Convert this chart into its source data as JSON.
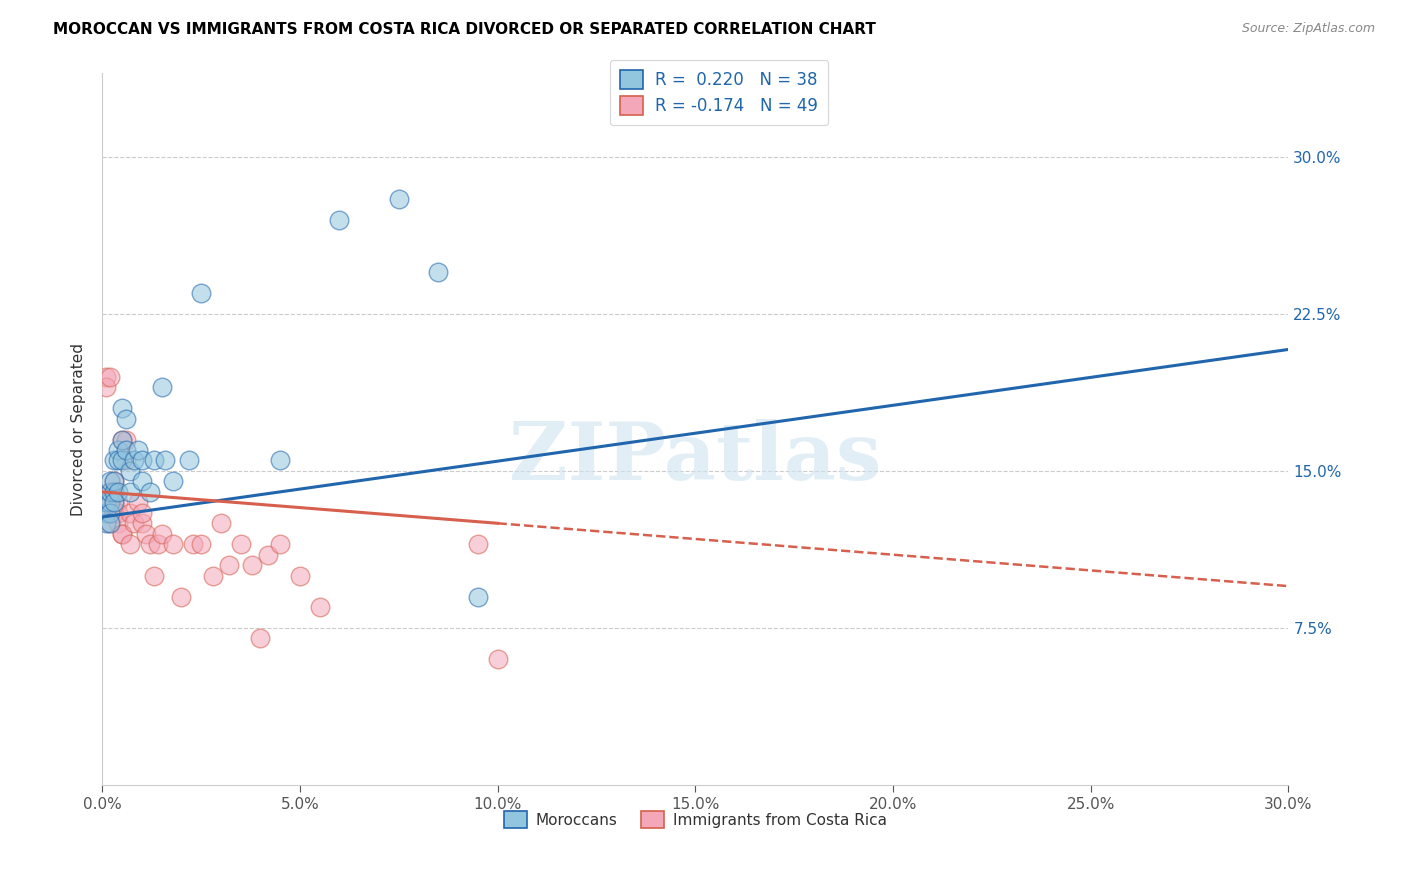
{
  "title": "MOROCCAN VS IMMIGRANTS FROM COSTA RICA DIVORCED OR SEPARATED CORRELATION CHART",
  "source": "Source: ZipAtlas.com",
  "ylabel": "Divorced or Separated",
  "yticks": [
    "7.5%",
    "15.0%",
    "22.5%",
    "30.0%"
  ],
  "ytick_vals": [
    0.075,
    0.15,
    0.225,
    0.3
  ],
  "xrange": [
    0.0,
    0.3
  ],
  "yrange": [
    0.0,
    0.34
  ],
  "blue_color": "#92c5de",
  "pink_color": "#f4a7b9",
  "blue_line_color": "#2166ac",
  "pink_line_color": "#d6604d",
  "watermark_text": "ZIPatlas",
  "blue_r": 0.22,
  "blue_n": 38,
  "pink_r": -0.174,
  "pink_n": 49,
  "moroccans_x": [
    0.001,
    0.001,
    0.001,
    0.002,
    0.002,
    0.002,
    0.002,
    0.002,
    0.003,
    0.003,
    0.003,
    0.003,
    0.004,
    0.004,
    0.004,
    0.005,
    0.005,
    0.005,
    0.006,
    0.006,
    0.007,
    0.007,
    0.008,
    0.009,
    0.01,
    0.01,
    0.012,
    0.013,
    0.015,
    0.016,
    0.018,
    0.022,
    0.025,
    0.045,
    0.06,
    0.075,
    0.085,
    0.095
  ],
  "moroccans_y": [
    0.13,
    0.125,
    0.135,
    0.135,
    0.13,
    0.14,
    0.145,
    0.125,
    0.14,
    0.135,
    0.155,
    0.145,
    0.16,
    0.155,
    0.14,
    0.18,
    0.155,
    0.165,
    0.16,
    0.175,
    0.15,
    0.14,
    0.155,
    0.16,
    0.145,
    0.155,
    0.14,
    0.155,
    0.19,
    0.155,
    0.145,
    0.155,
    0.235,
    0.155,
    0.27,
    0.28,
    0.245,
    0.09
  ],
  "costa_rica_x": [
    0.001,
    0.001,
    0.001,
    0.001,
    0.001,
    0.002,
    0.002,
    0.002,
    0.002,
    0.002,
    0.003,
    0.003,
    0.003,
    0.003,
    0.004,
    0.004,
    0.004,
    0.005,
    0.005,
    0.005,
    0.006,
    0.006,
    0.007,
    0.007,
    0.008,
    0.009,
    0.01,
    0.01,
    0.011,
    0.012,
    0.013,
    0.014,
    0.015,
    0.018,
    0.02,
    0.023,
    0.025,
    0.028,
    0.03,
    0.032,
    0.035,
    0.038,
    0.04,
    0.042,
    0.045,
    0.05,
    0.055,
    0.095,
    0.1
  ],
  "costa_rica_y": [
    0.13,
    0.195,
    0.19,
    0.135,
    0.13,
    0.195,
    0.14,
    0.135,
    0.125,
    0.14,
    0.13,
    0.135,
    0.145,
    0.14,
    0.135,
    0.13,
    0.125,
    0.12,
    0.12,
    0.165,
    0.155,
    0.165,
    0.13,
    0.115,
    0.125,
    0.135,
    0.125,
    0.13,
    0.12,
    0.115,
    0.1,
    0.115,
    0.12,
    0.115,
    0.09,
    0.115,
    0.115,
    0.1,
    0.125,
    0.105,
    0.115,
    0.105,
    0.07,
    0.11,
    0.115,
    0.1,
    0.085,
    0.115,
    0.06
  ],
  "blue_line_x0": 0.0,
  "blue_line_x1": 0.3,
  "blue_line_y0": 0.128,
  "blue_line_y1": 0.208,
  "pink_line_x0": 0.0,
  "pink_line_x1": 0.3,
  "pink_line_y0": 0.14,
  "pink_line_y1": 0.095
}
